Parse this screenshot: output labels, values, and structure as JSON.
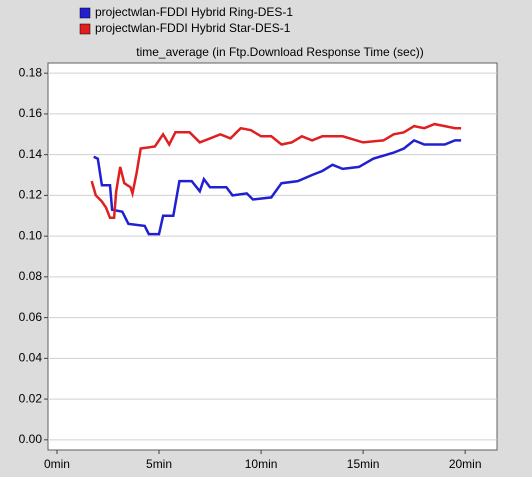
{
  "chart_data": {
    "type": "line",
    "title": "time_average (in Ftp.Download Response Time (sec))",
    "xlim": [
      -0.44,
      21.56
    ],
    "ylim": [
      -0.005,
      0.185
    ],
    "grid": true,
    "legend": "top-left",
    "xticks": [
      {
        "value": 0,
        "label": "0min"
      },
      {
        "value": 5,
        "label": "5min"
      },
      {
        "value": 10,
        "label": "10min"
      },
      {
        "value": 15,
        "label": "15min"
      },
      {
        "value": 20,
        "label": "20min"
      }
    ],
    "yticks": [
      {
        "value": 0,
        "label": "0.00"
      },
      {
        "value": 0.02,
        "label": "0.02"
      },
      {
        "value": 0.04,
        "label": "0.04"
      },
      {
        "value": 0.06,
        "label": "0.06"
      },
      {
        "value": 0.08,
        "label": "0.08"
      },
      {
        "value": 0.1,
        "label": "0.10"
      },
      {
        "value": 0.12,
        "label": "0.12"
      },
      {
        "value": 0.14,
        "label": "0.14"
      },
      {
        "value": 0.16,
        "label": "0.16"
      },
      {
        "value": 0.18,
        "label": "0.18"
      }
    ],
    "series": [
      {
        "name": "projectwlan-FDDI Hybrid Ring-DES-1",
        "color": "#2020d0",
        "x": [
          1.8,
          2.0,
          2.2,
          2.6,
          2.7,
          3.2,
          3.5,
          4.3,
          4.5,
          5.0,
          5.2,
          5.7,
          6.0,
          6.6,
          7.0,
          7.2,
          7.5,
          8.3,
          8.6,
          9.3,
          9.6,
          10.5,
          11.0,
          11.8,
          12.5,
          13.0,
          13.5,
          14.0,
          14.8,
          15.5,
          16.5,
          17.0,
          17.5,
          18.0,
          19.0,
          19.5,
          19.8
        ],
        "values": [
          0.139,
          0.138,
          0.125,
          0.125,
          0.113,
          0.112,
          0.106,
          0.105,
          0.101,
          0.101,
          0.11,
          0.11,
          0.127,
          0.127,
          0.122,
          0.128,
          0.124,
          0.124,
          0.12,
          0.121,
          0.118,
          0.119,
          0.126,
          0.127,
          0.13,
          0.132,
          0.135,
          0.133,
          0.134,
          0.138,
          0.141,
          0.143,
          0.147,
          0.145,
          0.145,
          0.147,
          0.147
        ]
      },
      {
        "name": "projectwlan-FDDI Hybrid Star-DES-1",
        "color": "#e02020",
        "x": [
          1.7,
          1.9,
          2.2,
          2.4,
          2.6,
          2.8,
          2.9,
          3.1,
          3.3,
          3.6,
          3.7,
          3.9,
          4.1,
          4.8,
          5.2,
          5.5,
          5.8,
          6.5,
          7.0,
          7.5,
          8.0,
          8.5,
          9.0,
          9.5,
          10.0,
          10.5,
          11.0,
          11.5,
          12.0,
          12.5,
          13.0,
          14.0,
          15.0,
          16.0,
          16.5,
          17.0,
          17.5,
          18.0,
          18.5,
          19.0,
          19.5,
          19.8
        ],
        "values": [
          0.127,
          0.12,
          0.117,
          0.114,
          0.109,
          0.109,
          0.122,
          0.134,
          0.126,
          0.124,
          0.121,
          0.131,
          0.143,
          0.144,
          0.15,
          0.145,
          0.151,
          0.151,
          0.146,
          0.148,
          0.15,
          0.148,
          0.153,
          0.152,
          0.149,
          0.149,
          0.145,
          0.146,
          0.149,
          0.147,
          0.149,
          0.149,
          0.146,
          0.147,
          0.15,
          0.151,
          0.154,
          0.153,
          0.155,
          0.154,
          0.153,
          0.153
        ]
      }
    ]
  }
}
